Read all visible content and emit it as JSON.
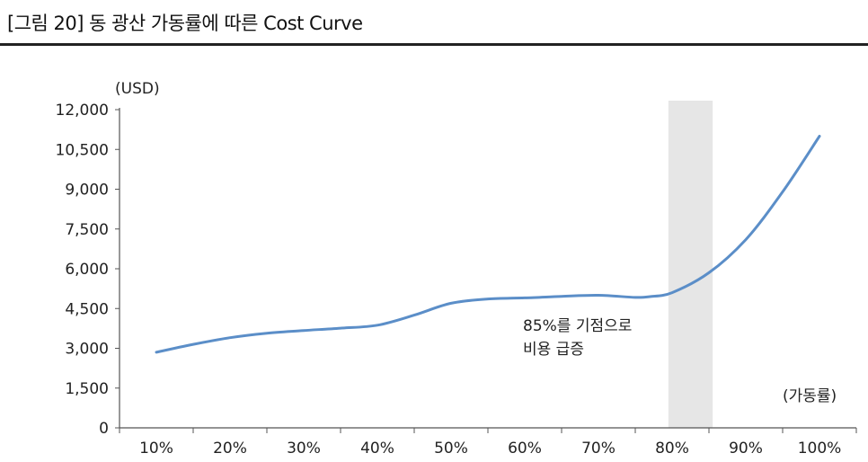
{
  "figure": {
    "title": "[그림 20] 동 광산 가동률에 따른 Cost Curve"
  },
  "chart_data": {
    "type": "line",
    "title": "[그림 20] 동 광산 가동률에 따른 Cost Curve",
    "ylabel": "(USD)",
    "xlabel": "(가동률)",
    "categories": [
      "10%",
      "20%",
      "30%",
      "40%",
      "50%",
      "60%",
      "70%",
      "80%",
      "90%",
      "100%"
    ],
    "yticks": [
      "0",
      "1,500",
      "3,000",
      "4,500",
      "6,000",
      "7,500",
      "9,000",
      "10,500",
      "12,000"
    ],
    "ylim": [
      0,
      12000
    ],
    "grid": false,
    "series": [
      {
        "x": [
          10,
          15,
          20,
          25,
          30,
          35,
          40,
          45,
          50,
          55,
          60,
          65,
          70,
          75,
          77,
          80,
          85,
          90,
          95,
          100
        ],
        "values": [
          2850,
          3150,
          3400,
          3570,
          3670,
          3760,
          3870,
          4250,
          4700,
          4860,
          4900,
          4960,
          5000,
          4920,
          4950,
          5100,
          5850,
          7100,
          8900,
          11000
        ]
      }
    ],
    "highlight_band": {
      "x_from": 79.5,
      "x_to": 85.5,
      "color": "#e6e6e6"
    },
    "annotation": {
      "line1": "85%를 기점으로",
      "line2": "비용 급증"
    },
    "line_color": "#5b8ec8"
  }
}
